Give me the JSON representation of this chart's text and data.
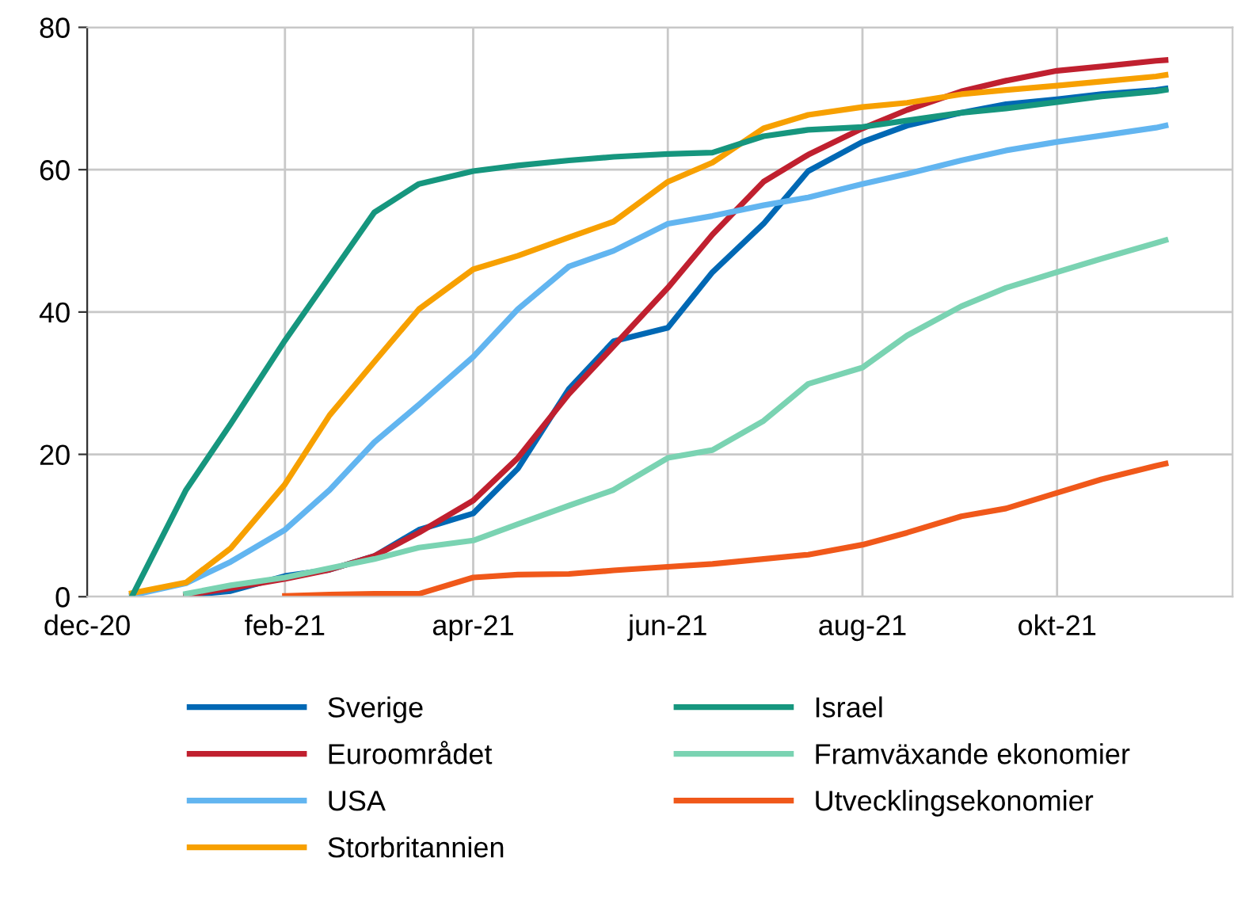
{
  "chart_data": {
    "type": "line",
    "x": [
      "2020-12-15",
      "2021-01-01",
      "2021-01-15",
      "2021-02-01",
      "2021-02-15",
      "2021-03-01",
      "2021-03-15",
      "2021-04-01",
      "2021-04-15",
      "2021-05-01",
      "2021-05-15",
      "2021-06-01",
      "2021-06-15",
      "2021-07-01",
      "2021-07-15",
      "2021-08-01",
      "2021-08-15",
      "2021-09-01",
      "2021-09-15",
      "2021-10-01",
      "2021-10-15",
      "2021-11-01",
      "2021-11-04"
    ],
    "series": [
      {
        "name": "Sverige",
        "color": "#0068b4",
        "values": [
          null,
          0.2,
          0.8,
          2.9,
          3.8,
          5.7,
          9.4,
          11.7,
          18,
          29.2,
          35.9,
          37.8,
          45.6,
          52.4,
          59.8,
          63.9,
          66.2,
          68,
          69.2,
          69.9,
          70.6,
          71.2,
          71.4
        ]
      },
      {
        "name": "Euroområdet",
        "color": "#c0202f",
        "values": [
          null,
          0.2,
          1.2,
          2.5,
          3.8,
          5.7,
          9,
          13.5,
          19.5,
          28.5,
          35.2,
          43.4,
          50.9,
          58.3,
          62.1,
          65.8,
          68.4,
          71,
          72.5,
          73.9,
          74.5,
          75.3,
          75.4
        ]
      },
      {
        "name": "USA",
        "color": "#62b5f0",
        "values": [
          0.2,
          1.9,
          4.9,
          9.4,
          15,
          21.7,
          27,
          33.7,
          40.4,
          46.4,
          48.6,
          52.4,
          53.5,
          55,
          56.1,
          58,
          59.4,
          61.3,
          62.7,
          63.9,
          64.8,
          65.9,
          66.2
        ]
      },
      {
        "name": "Storbritannien",
        "color": "#f7a000",
        "values": [
          0.5,
          2,
          6.8,
          15.8,
          25.5,
          33,
          40.4,
          46,
          47.9,
          50.5,
          52.7,
          58.3,
          61,
          65.8,
          67.7,
          68.8,
          69.4,
          70.6,
          71.2,
          71.8,
          72.4,
          73.1,
          73.3
        ]
      },
      {
        "name": "Israel",
        "color": "#16967e",
        "values": [
          0,
          15,
          24.3,
          36,
          45,
          54,
          58,
          59.8,
          60.6,
          61.3,
          61.8,
          62.2,
          62.4,
          64.7,
          65.6,
          66,
          66.9,
          68,
          68.6,
          69.5,
          70.3,
          71,
          71.2
        ]
      },
      {
        "name": "Framväxande ekonomier",
        "color": "#7ad3b2",
        "values": [
          null,
          0.4,
          1.6,
          2.7,
          4,
          5.3,
          6.9,
          7.9,
          10.2,
          12.8,
          15,
          19.5,
          20.6,
          24.7,
          29.9,
          32.2,
          36.7,
          40.8,
          43.4,
          45.6,
          47.5,
          49.7,
          50.1
        ]
      },
      {
        "name": "Utvecklingsekonomier",
        "color": "#f0581a",
        "values": [
          null,
          null,
          null,
          0.1,
          0.3,
          0.4,
          0.4,
          2.7,
          3.1,
          3.2,
          3.7,
          4.2,
          4.6,
          5.3,
          5.9,
          7.3,
          9,
          11.3,
          12.4,
          14.6,
          16.5,
          18.4,
          18.7
        ]
      }
    ],
    "xlim": [
      "2020-12-01",
      "2021-11-25"
    ],
    "xticks": [
      {
        "value": "2020-12-01",
        "label": "dec-20"
      },
      {
        "value": "2021-02-01",
        "label": "feb-21"
      },
      {
        "value": "2021-04-01",
        "label": "apr-21"
      },
      {
        "value": "2021-06-01",
        "label": "jun-21"
      },
      {
        "value": "2021-08-01",
        "label": "aug-21"
      },
      {
        "value": "2021-10-01",
        "label": "okt-21"
      }
    ],
    "ylim": [
      0,
      80
    ],
    "yticks": [
      0,
      20,
      40,
      60,
      80
    ],
    "grid": true,
    "legend": "bottom",
    "marker": "none",
    "line_style": "solid"
  }
}
